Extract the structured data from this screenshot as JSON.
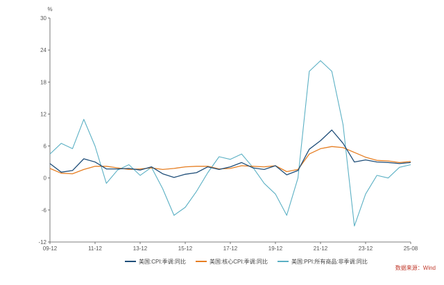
{
  "chart_data": {
    "type": "line",
    "title": "",
    "xlabel": "",
    "ylabel": "%",
    "ylim": [
      -12,
      30
    ],
    "yticks": [
      "30",
      "24",
      "18",
      "12",
      "6",
      "0",
      "-6",
      "-12"
    ],
    "yticks_values": [
      30,
      24,
      18,
      12,
      6,
      0,
      -6,
      -12
    ],
    "xticks": [
      "09-12",
      "11-12",
      "13-12",
      "15-12",
      "17-12",
      "19-12",
      "21-12",
      "23-12",
      "25-08"
    ],
    "x": [
      "09-12",
      "10-06",
      "10-12",
      "11-06",
      "11-12",
      "12-06",
      "12-12",
      "13-06",
      "13-12",
      "14-06",
      "14-12",
      "15-06",
      "15-12",
      "16-06",
      "16-12",
      "17-06",
      "17-12",
      "18-06",
      "18-12",
      "19-06",
      "19-12",
      "20-06",
      "20-12",
      "21-06",
      "21-12",
      "22-06",
      "22-12",
      "23-06",
      "23-12",
      "24-06",
      "24-12",
      "25-06",
      "25-08"
    ],
    "grid": false,
    "legend_position": "bottom",
    "series": [
      {
        "name": "美国:CPI:季调:同比",
        "color": "#1f4e79",
        "values": [
          2.7,
          1.1,
          1.4,
          3.6,
          3.0,
          1.7,
          1.7,
          1.8,
          1.5,
          2.1,
          0.8,
          0.1,
          0.7,
          1.0,
          2.1,
          1.6,
          2.1,
          2.9,
          1.9,
          1.6,
          2.3,
          0.6,
          1.4,
          5.4,
          7.0,
          9.0,
          6.5,
          3.0,
          3.4,
          3.0,
          2.9,
          2.7,
          2.9
        ]
      },
      {
        "name": "美国:核心CPI:季调:同比",
        "color": "#e67e22",
        "values": [
          1.8,
          0.9,
          0.8,
          1.6,
          2.2,
          2.2,
          1.9,
          1.6,
          1.7,
          1.9,
          1.6,
          1.8,
          2.1,
          2.2,
          2.2,
          1.7,
          1.8,
          2.3,
          2.2,
          2.1,
          2.3,
          1.2,
          1.6,
          4.5,
          5.5,
          5.9,
          5.7,
          4.8,
          3.9,
          3.3,
          3.2,
          2.9,
          3.1
        ]
      },
      {
        "name": "美国:PPI:所有商品:非季调:同比",
        "color": "#5bb0c4",
        "values": [
          4.5,
          6.5,
          5.5,
          11.0,
          6.0,
          -1.0,
          1.5,
          2.5,
          0.5,
          2.0,
          -2.0,
          -7.0,
          -5.5,
          -2.5,
          1.0,
          4.0,
          3.5,
          4.5,
          2.0,
          -1.0,
          -3.0,
          -7.0,
          0.0,
          20.0,
          22.0,
          20.0,
          10.0,
          -9.0,
          -3.0,
          0.5,
          0.0,
          2.0,
          2.5
        ]
      }
    ]
  },
  "source_text": "数据来源：Wind"
}
